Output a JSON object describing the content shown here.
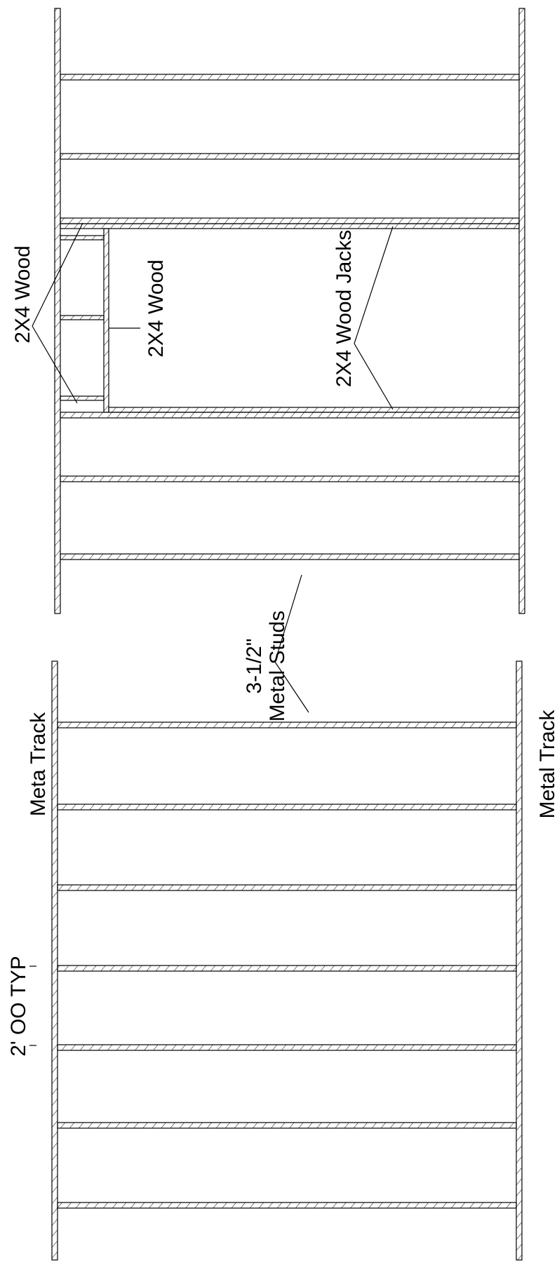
{
  "labels": {
    "wood_header": "2X4 Wood",
    "wood_cripple": "2X4 Wood",
    "wood_jacks": "2X4 Wood Jacks",
    "metal_studs_line1": "3-1/2\"",
    "metal_studs_line2": "Metal Studs",
    "metal_track_top": "Meta Track",
    "metal_track_bottom": "Metal Track",
    "spacing": "2' OO TYP"
  },
  "colors": {
    "line": "#000000",
    "background": "#ffffff"
  }
}
